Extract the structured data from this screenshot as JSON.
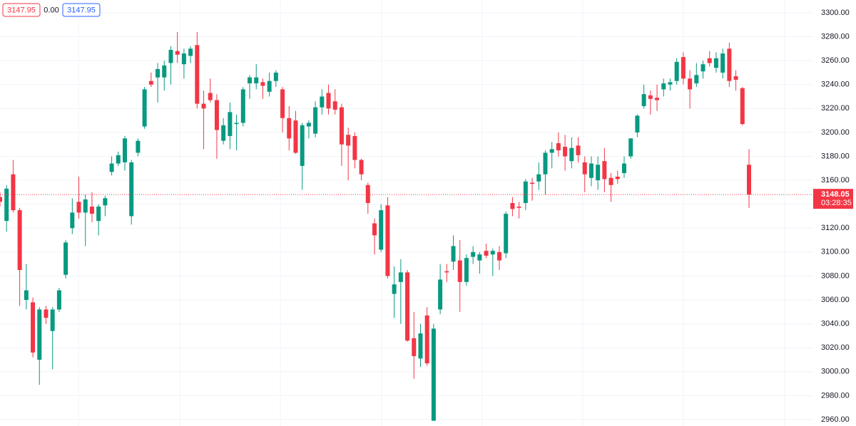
{
  "chart_data": {
    "type": "candlestick",
    "header": {
      "sell": "3147.95",
      "spread": "0.00",
      "buy": "3147.95"
    },
    "up_color": "#089981",
    "down_color": "#f23645",
    "open": [
      3146,
      3126,
      3165,
      3135,
      3060,
      3058,
      3010,
      3052,
      3034,
      3052,
      3081,
      3120,
      3142,
      3133,
      3138,
      3126,
      3139,
      3167,
      3174,
      3175,
      3130,
      3183,
      3205,
      3243,
      3246,
      3246,
      3258,
      3268,
      3257,
      3264,
      3273,
      3224,
      3233,
      3227,
      3193,
      3197,
      3207,
      3208,
      3241,
      3241,
      3242,
      3234,
      3243,
      3236,
      3212,
      3210,
      3172,
      3205,
      3199,
      3221,
      3233,
      3226,
      3221,
      3198,
      3197,
      3177,
      3156,
      3124,
      3102,
      3139,
      3065,
      3075,
      3083,
      3028,
      3011,
      3047,
      2959,
      3052,
      3084,
      3092,
      3093,
      3075,
      3096,
      3093,
      3101,
      3098,
      3100,
      3099,
      3141,
      3138,
      3141,
      3158,
      3159,
      3165,
      3183,
      3191,
      3188,
      3176,
      3189,
      3175,
      3162,
      3160,
      3176,
      3162,
      3163,
      3166,
      3180,
      3200,
      3222,
      3231,
      3229,
      3236,
      3240,
      3243,
      3263,
      3245,
      3241,
      3251,
      3262,
      3254,
      3250,
      3270,
      3247,
      3237,
      3173
    ],
    "high": [
      3150,
      3156,
      3177,
      3137,
      3090,
      3062,
      3054,
      3055,
      3054,
      3070,
      3110,
      3145,
      3163,
      3148,
      3150,
      3140,
      3147,
      3180,
      3184,
      3197,
      3177,
      3195,
      3238,
      3250,
      3258,
      3260,
      3272,
      3284,
      3270,
      3272,
      3284,
      3235,
      3245,
      3232,
      3212,
      3225,
      3215,
      3238,
      3248,
      3257,
      3245,
      3250,
      3252,
      3238,
      3222,
      3218,
      3208,
      3210,
      3226,
      3236,
      3240,
      3236,
      3224,
      3204,
      3200,
      3178,
      3158,
      3128,
      3140,
      3146,
      3088,
      3094,
      3085,
      3050,
      3040,
      3054,
      3040,
      3090,
      3090,
      3114,
      3110,
      3098,
      3105,
      3100,
      3107,
      3103,
      3105,
      3134,
      3146,
      3142,
      3161,
      3162,
      3175,
      3185,
      3192,
      3200,
      3198,
      3196,
      3196,
      3180,
      3180,
      3180,
      3187,
      3166,
      3168,
      3180,
      3195,
      3215,
      3240,
      3235,
      3240,
      3245,
      3245,
      3262,
      3267,
      3252,
      3258,
      3260,
      3268,
      3267,
      3270,
      3275,
      3252,
      3238,
      3186
    ],
    "low": [
      3138,
      3117,
      3133,
      3055,
      3052,
      3012,
      2989,
      3040,
      3002,
      3050,
      3078,
      3115,
      3128,
      3105,
      3125,
      3114,
      3130,
      3164,
      3172,
      3168,
      3123,
      3180,
      3203,
      3238,
      3225,
      3235,
      3240,
      3258,
      3245,
      3258,
      3220,
      3186,
      3225,
      3178,
      3190,
      3186,
      3185,
      3205,
      3228,
      3236,
      3228,
      3230,
      3238,
      3200,
      3185,
      3182,
      3152,
      3195,
      3196,
      3215,
      3215,
      3215,
      3172,
      3160,
      3170,
      3160,
      3132,
      3098,
      3100,
      3078,
      3045,
      3040,
      3025,
      2994,
      3004,
      3005,
      2959,
      3048,
      3075,
      3085,
      3050,
      3072,
      3090,
      3082,
      3095,
      3080,
      3085,
      3095,
      3130,
      3128,
      3135,
      3143,
      3152,
      3148,
      3170,
      3180,
      3168,
      3170,
      3175,
      3150,
      3155,
      3152,
      3150,
      3142,
      3157,
      3162,
      3178,
      3196,
      3220,
      3215,
      3218,
      3230,
      3235,
      3240,
      3240,
      3220,
      3238,
      3245,
      3255,
      3250,
      3245,
      3238,
      3235,
      3206,
      3137
    ],
    "close": [
      3142,
      3153,
      3135,
      3085,
      3068,
      3016,
      3052,
      3045,
      3052,
      3068,
      3108,
      3133,
      3133,
      3144,
      3132,
      3138,
      3145,
      3174,
      3181,
      3195,
      3175,
      3193,
      3236,
      3240,
      3253,
      3256,
      3269,
      3265,
      3266,
      3270,
      3224,
      3220,
      3227,
      3202,
      3206,
      3217,
      3208,
      3236,
      3246,
      3246,
      3239,
      3243,
      3250,
      3212,
      3195,
      3183,
      3206,
      3208,
      3221,
      3230,
      3220,
      3219,
      3190,
      3189,
      3177,
      3165,
      3141,
      3114,
      3135,
      3080,
      3073,
      3083,
      3026,
      3013,
      3032,
      3007,
      3036,
      3077,
      3083,
      3105,
      3075,
      3095,
      3100,
      3098,
      3097,
      3101,
      3093,
      3132,
      3136,
      3137,
      3159,
      3157,
      3165,
      3183,
      3186,
      3185,
      3180,
      3187,
      3181,
      3165,
      3174,
      3173,
      3161,
      3156,
      3161,
      3174,
      3195,
      3214,
      3232,
      3228,
      3227,
      3241,
      3242,
      3259,
      3245,
      3236,
      3248,
      3257,
      3258,
      3262,
      3266,
      3243,
      3244,
      3207,
      3148.05
    ],
    "ylim": [
      2954.6,
      3310.7
    ],
    "yticks": [
      {
        "value": 3300,
        "label": "3300.00"
      },
      {
        "value": 3280,
        "label": "3280.00"
      },
      {
        "value": 3260,
        "label": "3260.00"
      },
      {
        "value": 3240,
        "label": "3240.00"
      },
      {
        "value": 3220,
        "label": "3220.00"
      },
      {
        "value": 3200,
        "label": "3200.00"
      },
      {
        "value": 3180,
        "label": "3180.00"
      },
      {
        "value": 3160,
        "label": "3160.00"
      },
      {
        "value": 3140,
        "label": "3140.00"
      },
      {
        "value": 3120,
        "label": "3120.00"
      },
      {
        "value": 3100,
        "label": "3100.00"
      },
      {
        "value": 3080,
        "label": "3080.00"
      },
      {
        "value": 3060,
        "label": "3060.00"
      },
      {
        "value": 3040,
        "label": "3040.00"
      },
      {
        "value": 3020,
        "label": "3020.00"
      },
      {
        "value": 3000,
        "label": "3000.00"
      },
      {
        "value": 2980,
        "label": "2980.00"
      },
      {
        "value": 2960,
        "label": "2960.00"
      }
    ],
    "last_price": 3148.05,
    "countdown": "03:28:35",
    "grid": true
  }
}
